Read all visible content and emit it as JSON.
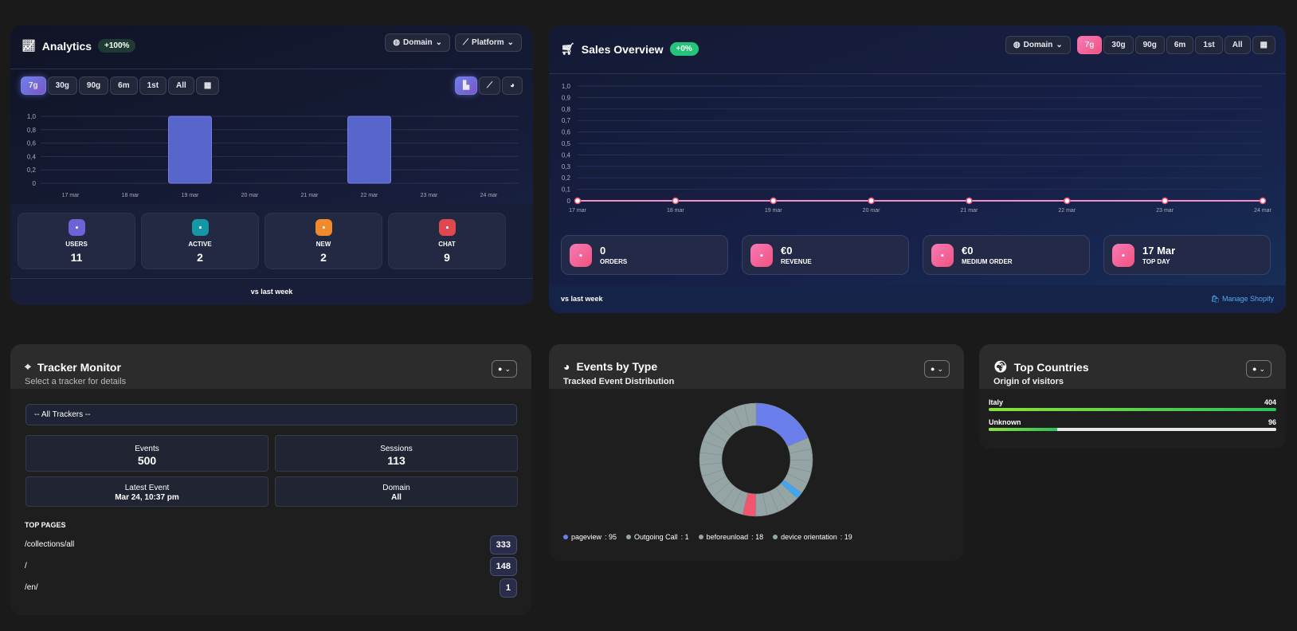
{
  "analytics": {
    "title": "Analytics",
    "badge": "+100%",
    "domain_label": "Domain",
    "platform_label": "Platform",
    "ranges": [
      "7g",
      "30g",
      "90g",
      "6m",
      "1st",
      "All"
    ],
    "active_range": "7g",
    "stats": [
      {
        "label": "USERS",
        "value": "11",
        "color": "#6e63d6",
        "icon": "document-icon"
      },
      {
        "label": "ACTIVE",
        "value": "2",
        "color": "#1597a5",
        "icon": "users-icon"
      },
      {
        "label": "NEW",
        "value": "2",
        "color": "#f08a2c",
        "icon": "euro-icon"
      },
      {
        "label": "CHAT",
        "value": "9",
        "color": "#e0484f",
        "icon": "calendar-icon"
      }
    ],
    "footer": "vs last week"
  },
  "sales": {
    "title": "Sales Overview",
    "badge": "+0%",
    "domain_label": "Domain",
    "ranges": [
      "7g",
      "30g",
      "90g",
      "6m",
      "1st",
      "All"
    ],
    "active_range": "7g",
    "stats": [
      {
        "value": "0",
        "label": "ORDERS",
        "icon": "receipt-icon"
      },
      {
        "value": "€0",
        "label": "REVENUE",
        "icon": "euro-icon"
      },
      {
        "value": "€0",
        "label": "MEDIUM ORDER",
        "icon": "basket-icon"
      },
      {
        "value": "17 Mar",
        "label": "TOP DAY",
        "icon": "chart-icon"
      }
    ],
    "footer": "vs last week",
    "manage_link": "Manage Shopify"
  },
  "tracker": {
    "title": "Tracker Monitor",
    "subtitle": "Select a tracker for details",
    "select_value": "-- All Trackers --",
    "boxes": [
      {
        "label": "Events",
        "value": "500"
      },
      {
        "label": "Sessions",
        "value": "113"
      },
      {
        "label": "Latest Event",
        "value": "Mar 24, 10:37 pm"
      },
      {
        "label": "Domain",
        "value": "All"
      }
    ],
    "top_pages_title": "TOP PAGES",
    "top_pages": [
      {
        "path": "/collections/all",
        "count": "333"
      },
      {
        "path": "/",
        "count": "148"
      },
      {
        "path": "/en/",
        "count": "1"
      }
    ]
  },
  "events": {
    "title": "Events by Type",
    "subtitle": "Tracked Event Distribution"
  },
  "countries": {
    "title": "Top Countries",
    "subtitle": "Origin of visitors",
    "items": [
      {
        "name": "Italy",
        "value": "404",
        "fraction": 1.0
      },
      {
        "name": "Unknown",
        "value": "96",
        "fraction": 0.238
      }
    ]
  },
  "chart_data": [
    {
      "type": "bar",
      "categories": [
        "17 mar",
        "18 mar",
        "19 mar",
        "20 mar",
        "21 mar",
        "22 mar",
        "23 mar",
        "24 mar"
      ],
      "values": [
        0,
        0,
        1,
        0,
        0,
        1,
        0,
        0
      ],
      "ylim": [
        0,
        1
      ],
      "yticks": [
        "0",
        "0,2",
        "0,4",
        "0,6",
        "0,8",
        "1,0"
      ],
      "grid": true,
      "color": "#5866cc"
    },
    {
      "type": "line",
      "categories": [
        "17 mar",
        "18 mar",
        "19 mar",
        "20 mar",
        "21 mar",
        "22 mar",
        "23 mar",
        "24 mar"
      ],
      "values": [
        0,
        0,
        0,
        0,
        0,
        0,
        0,
        0
      ],
      "ylim": [
        0,
        1
      ],
      "yticks": [
        "0",
        "0,1",
        "0,2",
        "0,3",
        "0,4",
        "0,5",
        "0,6",
        "0,7",
        "0,8",
        "0,9",
        "1,0"
      ],
      "grid": true,
      "color": "#f48fc8"
    },
    {
      "type": "pie",
      "total": 500,
      "slices": [
        {
          "label": "pageview",
          "value": 95,
          "color": "#6a7fec"
        },
        {
          "label": "Outgoing Call",
          "value": 1,
          "color": "#95a5a6"
        },
        {
          "label": "beforeunload",
          "value": 18,
          "color": "#95a5a6"
        },
        {
          "label": "device orientation",
          "value": 19,
          "color": "#95a5a6"
        }
      ],
      "other_color": "#95a5a6",
      "legend": "bottom"
    }
  ]
}
